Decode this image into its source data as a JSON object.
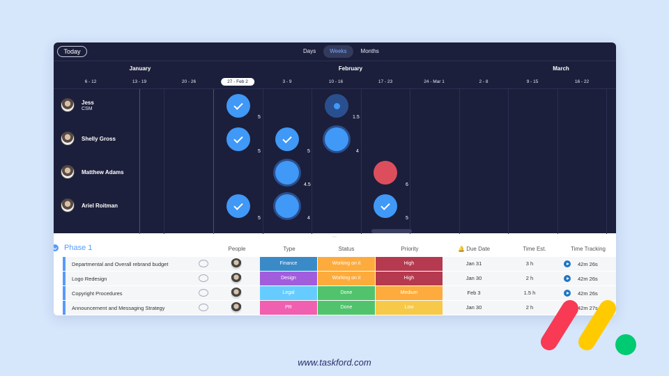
{
  "toolbar": {
    "today_label": "Today",
    "scales": [
      "Days",
      "Weeks",
      "Months"
    ],
    "active_scale": "Weeks"
  },
  "months": [
    "January",
    "February",
    "March"
  ],
  "weeks": [
    "6 - 12",
    "13 - 19",
    "20 - 26",
    "27 - Feb 2",
    "3 - 9",
    "10 - 16",
    "17 - 23",
    "24 - Mar 1",
    "2 - 8",
    "9 - 15",
    "16 - 22"
  ],
  "current_week": "27 - Feb 2",
  "people": [
    {
      "name": "Jess",
      "role": "CSM"
    },
    {
      "name": "Shelly Gross",
      "role": ""
    },
    {
      "name": "Matthew Adams",
      "role": ""
    },
    {
      "name": "Ariel Roitman",
      "role": ""
    }
  ],
  "workload": [
    {
      "label": "5"
    },
    {
      "label": "1.5"
    },
    {
      "label": "5"
    },
    {
      "label": "5"
    },
    {
      "label": "4"
    },
    {
      "label": "4.5"
    },
    {
      "label": "6"
    },
    {
      "label": "5"
    },
    {
      "label": "4"
    },
    {
      "label": "5"
    }
  ],
  "table": {
    "group_title": "Phase 1",
    "columns": [
      "People",
      "Type",
      "Status",
      "Priority",
      "Due Date",
      "Time Est.",
      "Time Tracking"
    ],
    "rows": [
      {
        "title": "Departmental and Overall rebrand budget",
        "type": "Finance",
        "type_color": "#3a8ac8",
        "status": "Working on it",
        "status_color": "#fdab3d",
        "priority": "High",
        "priority_color": "#b53a4f",
        "due": "Jan 31",
        "est": "3 h",
        "tracking": "42m 26s"
      },
      {
        "title": "Logo Redesign",
        "type": "Design",
        "type_color": "#a25ddc",
        "status": "Working on it",
        "status_color": "#fdab3d",
        "priority": "High",
        "priority_color": "#b53a4f",
        "due": "Jan 30",
        "est": "2 h",
        "tracking": "42m 26s"
      },
      {
        "title": "Copyright Procedures",
        "type": "Legal",
        "type_color": "#66ccff",
        "status": "Done",
        "status_color": "#51c36d",
        "priority": "Medium",
        "priority_color": "#fdab3d",
        "due": "Feb 3",
        "est": "1.5 h",
        "tracking": "42m 26s"
      },
      {
        "title": "Announcement and Messaging Strategy",
        "type": "PR",
        "type_color": "#f05fb0",
        "status": "Done",
        "status_color": "#51c36d",
        "priority": "Low",
        "priority_color": "#f7c948",
        "due": "Jan 30",
        "est": "2 h",
        "tracking": "42m 27s"
      }
    ]
  },
  "brand": {
    "logo_colors": [
      "#f83a54",
      "#ffcb00",
      "#00ca72"
    ]
  },
  "footer": {
    "url": "www.taskford.com"
  }
}
